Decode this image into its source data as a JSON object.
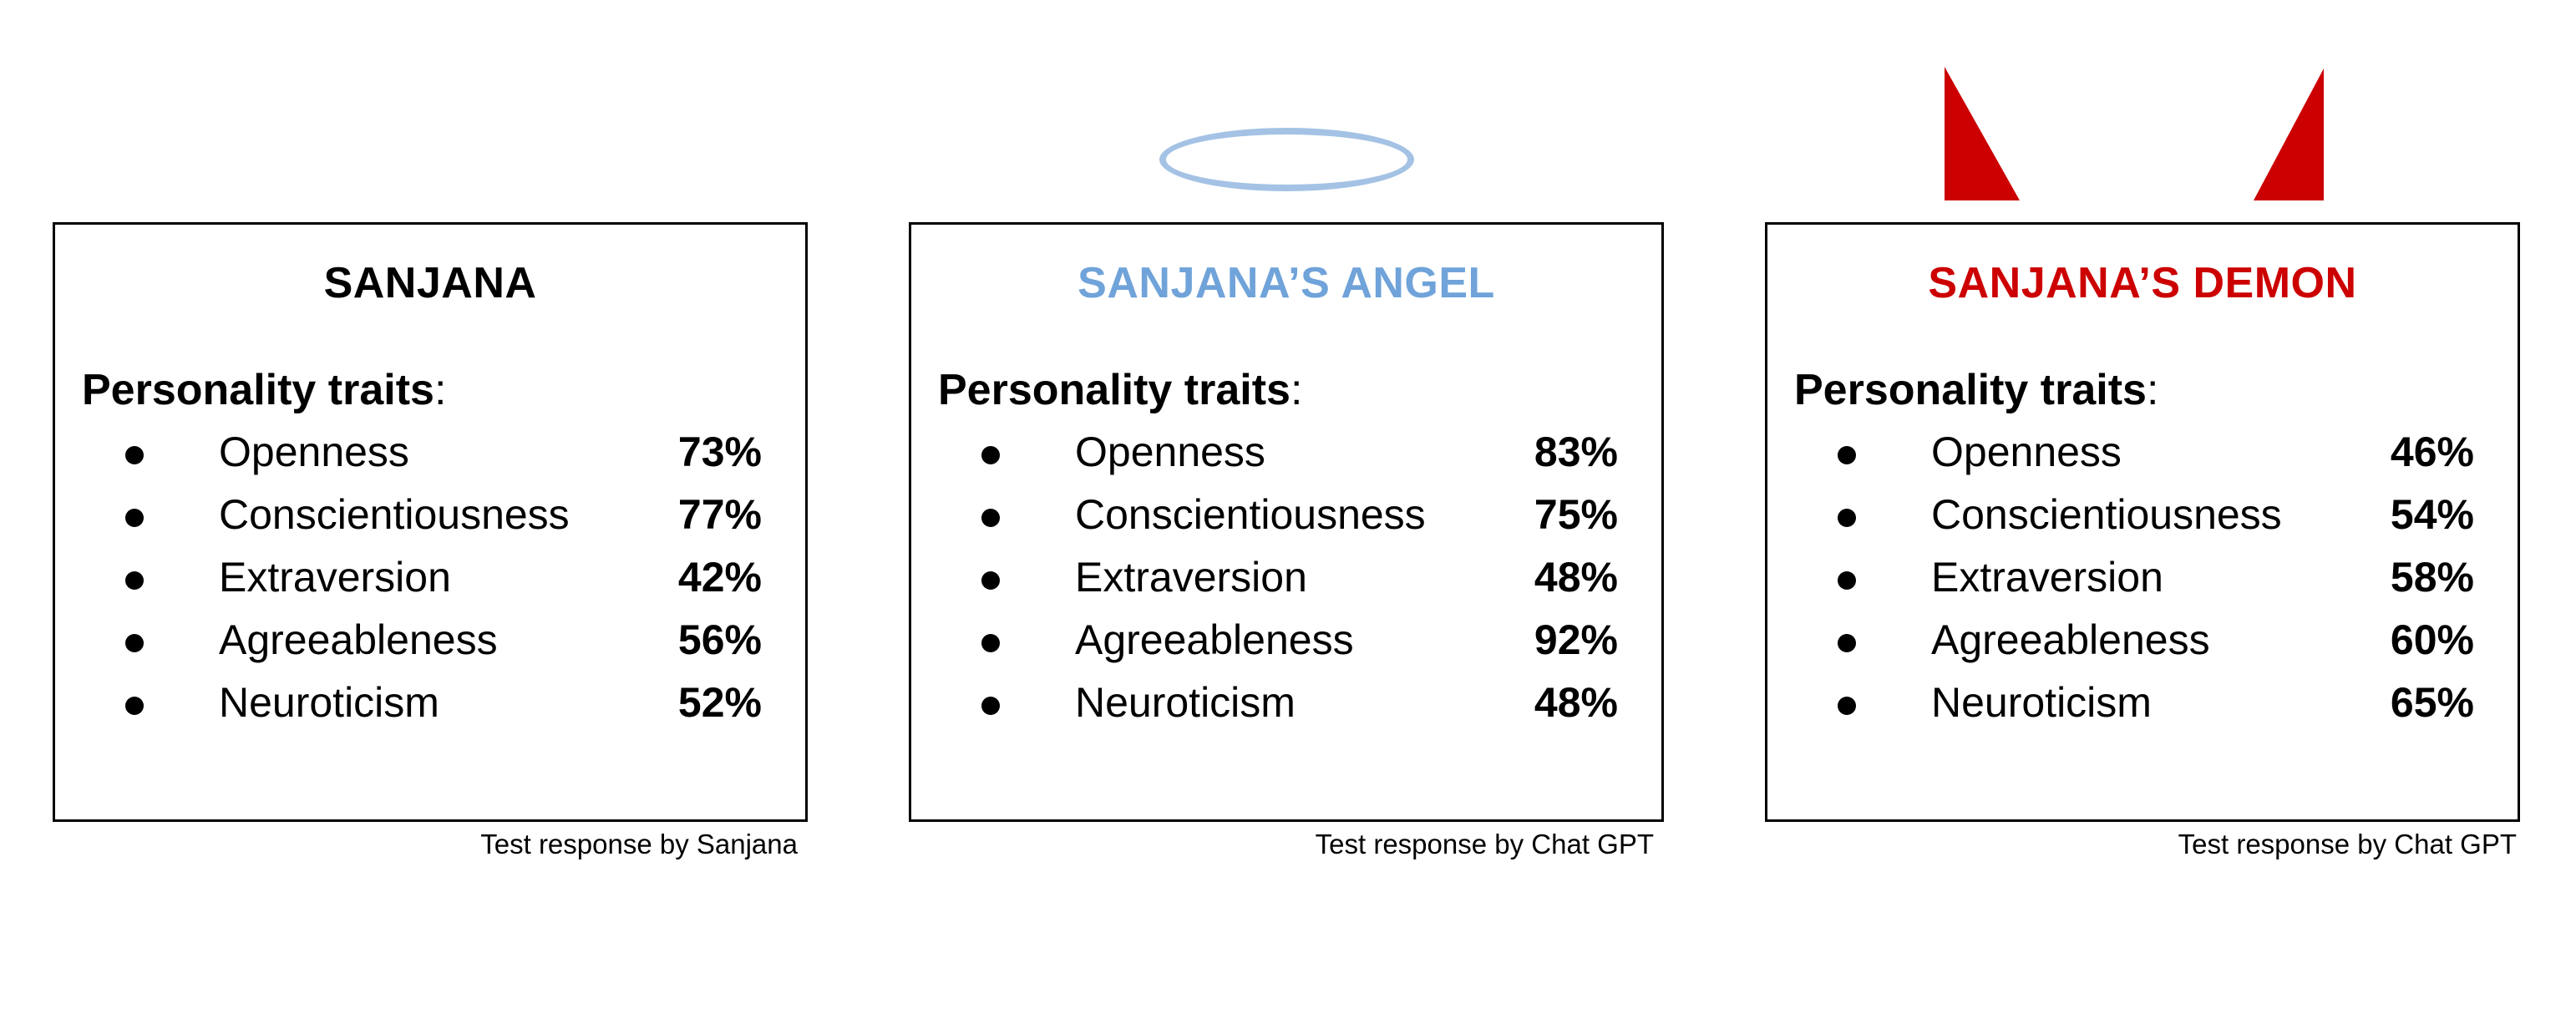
{
  "heading_label": "Personality traits",
  "heading_suffix": ":",
  "cards": [
    {
      "title": "SANJANA",
      "title_color": "#000000",
      "credit": "Test response by Sanjana",
      "traits": [
        {
          "name": "Openness",
          "value": "73%"
        },
        {
          "name": "Conscientiousness",
          "value": "77%"
        },
        {
          "name": "Extraversion",
          "value": "42%"
        },
        {
          "name": "Agreeableness",
          "value": "56%"
        },
        {
          "name": "Neuroticism",
          "value": "52%"
        }
      ]
    },
    {
      "title": "SANJANA’S ANGEL",
      "title_color": "#6fa3d9",
      "credit": "Test response by Chat GPT",
      "traits": [
        {
          "name": "Openness",
          "value": "83%"
        },
        {
          "name": "Conscientiousness",
          "value": "75%"
        },
        {
          "name": "Extraversion",
          "value": "48%"
        },
        {
          "name": "Agreeableness",
          "value": "92%"
        },
        {
          "name": "Neuroticism",
          "value": "48%"
        }
      ]
    },
    {
      "title": "SANJANA’S DEMON",
      "title_color": "#cc0000",
      "credit": "Test response by Chat GPT",
      "traits": [
        {
          "name": "Openness",
          "value": "46%"
        },
        {
          "name": "Conscientiousness",
          "value": "54%"
        },
        {
          "name": "Extraversion",
          "value": "58%"
        },
        {
          "name": "Agreeableness",
          "value": "60%"
        },
        {
          "name": "Neuroticism",
          "value": "65%"
        }
      ]
    }
  ],
  "decorations": {
    "halo_color": "#a4c2e4",
    "horn_color": "#cc0000"
  }
}
